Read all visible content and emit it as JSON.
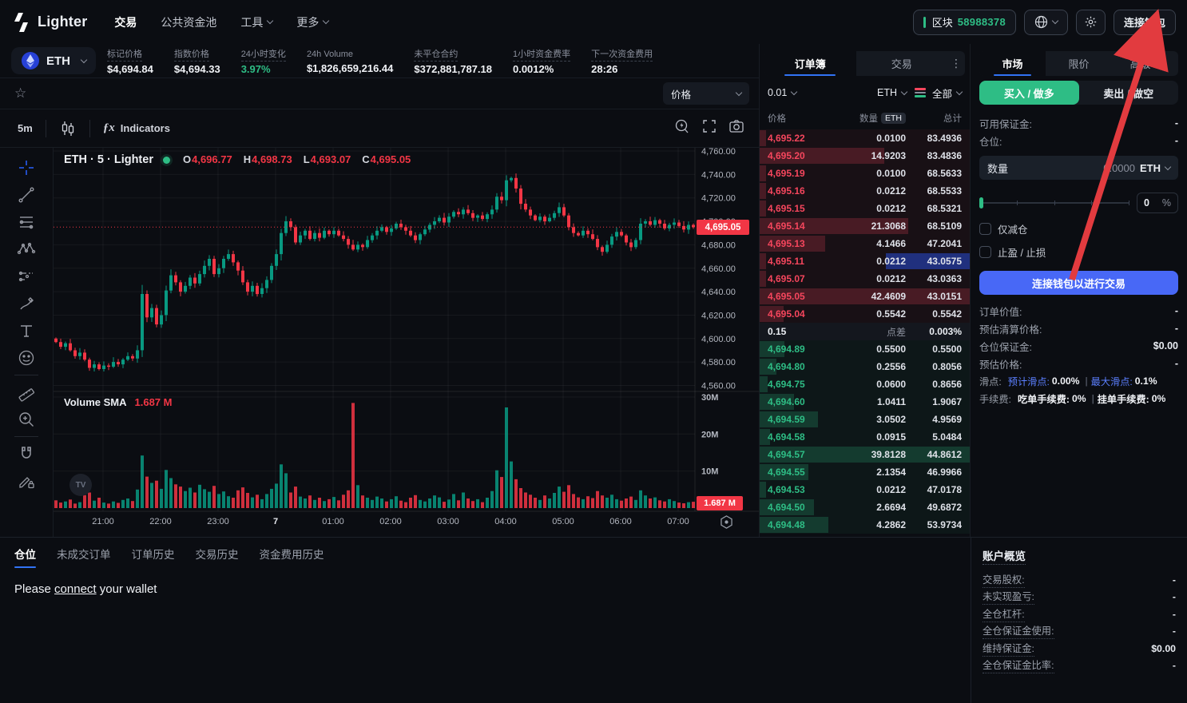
{
  "nav": {
    "brand": "Lighter",
    "items": [
      {
        "label": "交易",
        "active": true,
        "dropdown": false
      },
      {
        "label": "公共资金池",
        "active": false,
        "dropdown": false
      },
      {
        "label": "工具",
        "active": false,
        "dropdown": true
      },
      {
        "label": "更多",
        "active": false,
        "dropdown": true
      }
    ],
    "block_label": "区块",
    "block_number": "58988378",
    "connect_wallet_label": "连接钱包"
  },
  "market_bar": {
    "symbol": "ETH",
    "stats": [
      {
        "label": "标记价格",
        "value": "$4,694.84",
        "underline": true,
        "direction": ""
      },
      {
        "label": "指数价格",
        "value": "$4,694.33",
        "underline": true,
        "direction": ""
      },
      {
        "label": "24小时变化",
        "value": "3.97%",
        "underline": true,
        "direction": "up"
      },
      {
        "label": "24h Volume",
        "value": "$1,826,659,216.44",
        "underline": false,
        "direction": ""
      },
      {
        "label": "未平仓合约",
        "value": "$372,881,787.18",
        "underline": true,
        "direction": ""
      },
      {
        "label": "1小时资金费率",
        "value": "0.0012%",
        "underline": true,
        "direction": ""
      },
      {
        "label": "下一次资金费用",
        "value": "28:26",
        "underline": true,
        "direction": ""
      }
    ]
  },
  "chart_toolbar": {
    "timeframe": "5m",
    "indicators_label": "Indicators",
    "price_scale_label": "价格"
  },
  "chart": {
    "legend_title": "ETH · 5 · Lighter",
    "ohlc_labels": [
      "O",
      "H",
      "L",
      "C"
    ],
    "ohlc_values": [
      "4,696.77",
      "4,698.73",
      "4,693.07",
      "4,695.05"
    ],
    "volume_legend": "Volume SMA",
    "volume_value": "1.687 M",
    "price_tag": "4,695.05",
    "volume_tag": "1.687 M",
    "watermark": "TV"
  },
  "chart_data": {
    "type": "candlestick+volume",
    "symbol": "ETH",
    "interval": "5m",
    "ylim": [
      4560,
      4760
    ],
    "price_ticks": [
      4760,
      4740,
      4720,
      4700,
      4680,
      4660,
      4640,
      4620,
      4600,
      4580,
      4560
    ],
    "volume_ticks_m": [
      30,
      20,
      10
    ],
    "time_ticks": [
      "21:00",
      "22:00",
      "23:00",
      "7",
      "01:00",
      "02:00",
      "03:00",
      "04:00",
      "05:00",
      "06:00",
      "07:00"
    ],
    "current_price": 4695.05,
    "volume_sma_m": 1.687,
    "open_first": 4600,
    "closes": [
      4597,
      4593,
      4596,
      4590,
      4585,
      4588,
      4582,
      4575,
      4578,
      4574,
      4577,
      4576,
      4580,
      4578,
      4582,
      4585,
      4583,
      4590,
      4638,
      4618,
      4626,
      4612,
      4620,
      4641,
      4654,
      4648,
      4640,
      4645,
      4652,
      4647,
      4655,
      4662,
      4668,
      4655,
      4660,
      4668,
      4672,
      4665,
      4658,
      4648,
      4640,
      4645,
      4638,
      4643,
      4650,
      4662,
      4672,
      4690,
      4700,
      4695,
      4682,
      4688,
      4692,
      4685,
      4690,
      4686,
      4692,
      4689,
      4692,
      4688,
      4685,
      4680,
      4676,
      4680,
      4678,
      4684,
      4688,
      4692,
      4695,
      4691,
      4694,
      4698,
      4695,
      4692,
      4688,
      4684,
      4689,
      4693,
      4697,
      4700,
      4703,
      4699,
      4704,
      4708,
      4706,
      4710,
      4707,
      4703,
      4705,
      4702,
      4706,
      4710,
      4721,
      4718,
      4735,
      4737,
      4728,
      4715,
      4710,
      4705,
      4701,
      4704,
      4700,
      4703,
      4707,
      4712,
      4705,
      4695,
      4690,
      4688,
      4692,
      4689,
      4685,
      4678,
      4674,
      4680,
      4687,
      4691,
      4688,
      4682,
      4678,
      4684,
      4698,
      4700,
      4697,
      4701,
      4698,
      4694,
      4697,
      4699,
      4696,
      4693,
      4697,
      4695
    ],
    "volumes_m": [
      2.1,
      1.5,
      1.8,
      2.3,
      1.2,
      1.6,
      3.5,
      4.2,
      2.0,
      2.8,
      1.5,
      1.2,
      1.8,
      1.4,
      2.2,
      2.6,
      1.9,
      5.0,
      14.2,
      8.5,
      6.8,
      7.4,
      5.2,
      10.3,
      8.1,
      6.4,
      5.8,
      4.6,
      5.5,
      4.2,
      6.3,
      5.1,
      4.4,
      6.0,
      3.8,
      4.5,
      3.2,
      2.8,
      4.8,
      5.6,
      4.1,
      2.9,
      3.6,
      2.4,
      3.8,
      5.2,
      6.6,
      11.8,
      9.4,
      4.2,
      5.8,
      3.1,
      2.6,
      3.4,
      2.2,
      2.8,
      1.9,
      2.4,
      3.0,
      2.1,
      3.6,
      4.8,
      28.4,
      6.2,
      3.4,
      2.8,
      2.2,
      3.1,
      2.6,
      1.8,
      2.4,
      3.2,
      2.0,
      1.6,
      2.8,
      3.5,
      2.2,
      1.8,
      2.6,
      3.4,
      2.9,
      1.7,
      2.3,
      3.8,
      2.1,
      4.2,
      2.6,
      1.9,
      2.4,
      1.6,
      2.8,
      4.6,
      10.2,
      8.4,
      27.2,
      12.6,
      7.8,
      5.4,
      4.2,
      3.6,
      2.8,
      2.2,
      3.4,
      2.6,
      4.1,
      5.8,
      4.4,
      6.2,
      3.8,
      2.9,
      2.4,
      3.2,
      2.7,
      4.6,
      3.4,
      2.8,
      3.6,
      2.4,
      2.0,
      2.6,
      3.1,
      2.2,
      4.8,
      3.4,
      2.6,
      2.9,
      2.1,
      1.8,
      2.4,
      1.9,
      1.5,
      1.3,
      1.6,
      1.7
    ]
  },
  "drawing_tools": [
    "crosshair",
    "trend-line",
    "fib-retracement",
    "xabcd-pattern",
    "forecast",
    "brush",
    "text",
    "emoji",
    "ruler",
    "zoom-in",
    "magnet",
    "drawing-lock"
  ],
  "orderbook": {
    "tabs": [
      "订单簿",
      "交易"
    ],
    "active_tab": "订单簿",
    "precision": "0.01",
    "unit": "ETH",
    "view_all_label": "全部",
    "columns": {
      "price": "价格",
      "amount": "数量",
      "amount_unit": "ETH",
      "total": "总计"
    },
    "asks": [
      {
        "price": "4,695.22",
        "amount": "0.0100",
        "total": "83.4936"
      },
      {
        "price": "4,695.20",
        "amount": "14.9203",
        "total": "83.4836"
      },
      {
        "price": "4,695.19",
        "amount": "0.0100",
        "total": "68.5633"
      },
      {
        "price": "4,695.16",
        "amount": "0.0212",
        "total": "68.5533"
      },
      {
        "price": "4,695.15",
        "amount": "0.0212",
        "total": "68.5321"
      },
      {
        "price": "4,695.14",
        "amount": "21.3068",
        "total": "68.5109"
      },
      {
        "price": "4,695.13",
        "amount": "4.1466",
        "total": "47.2041"
      },
      {
        "price": "4,695.11",
        "amount": "0.0212",
        "total": "43.0575",
        "highlight": "blue"
      },
      {
        "price": "4,695.07",
        "amount": "0.0212",
        "total": "43.0363"
      },
      {
        "price": "4,695.05",
        "amount": "42.4609",
        "total": "43.0151"
      },
      {
        "price": "4,695.04",
        "amount": "0.5542",
        "total": "0.5542"
      }
    ],
    "spread": {
      "value": "0.15",
      "label": "点差",
      "percent": "0.003%"
    },
    "bids": [
      {
        "price": "4,694.89",
        "amount": "0.5500",
        "total": "0.5500"
      },
      {
        "price": "4,694.80",
        "amount": "0.2556",
        "total": "0.8056"
      },
      {
        "price": "4,694.75",
        "amount": "0.0600",
        "total": "0.8656"
      },
      {
        "price": "4,694.60",
        "amount": "1.0411",
        "total": "1.9067"
      },
      {
        "price": "4,694.59",
        "amount": "3.0502",
        "total": "4.9569"
      },
      {
        "price": "4,694.58",
        "amount": "0.0915",
        "total": "5.0484"
      },
      {
        "price": "4,694.57",
        "amount": "39.8128",
        "total": "44.8612"
      },
      {
        "price": "4,694.55",
        "amount": "2.1354",
        "total": "46.9966"
      },
      {
        "price": "4,694.53",
        "amount": "0.0212",
        "total": "47.0178"
      },
      {
        "price": "4,694.50",
        "amount": "2.6694",
        "total": "49.6872"
      },
      {
        "price": "4,694.48",
        "amount": "4.2862",
        "total": "53.9734"
      }
    ]
  },
  "trade_panel": {
    "tabs": [
      {
        "label": "市场",
        "active": true,
        "dropdown": false
      },
      {
        "label": "限价",
        "active": false,
        "dropdown": false
      },
      {
        "label": "高级",
        "active": false,
        "dropdown": true
      }
    ],
    "buy_label": "买入 / 做多",
    "sell_label": "卖出 / 做空",
    "available_margin_label": "可用保证金:",
    "available_margin_value": "-",
    "position_label": "仓位:",
    "position_value": "-",
    "amount_label": "数量",
    "amount_value": "0.0000",
    "amount_unit": "ETH",
    "slider_value": "0",
    "slider_unit": "%",
    "reduce_only_label": "仅减仓",
    "tp_sl_label": "止盈 / 止损",
    "cta_label": "连接钱包以进行交易",
    "info_rows": [
      {
        "label": "订单价值:",
        "value": "-"
      },
      {
        "label": "预估清算价格:",
        "value": "-"
      },
      {
        "label": "仓位保证金:",
        "value": "$0.00"
      },
      {
        "label": "预估价格:",
        "value": "-"
      }
    ],
    "slippage_label": "滑点:",
    "slippage_est_label": "预计滑点:",
    "slippage_est_value": "0.00%",
    "slippage_max_label": "最大滑点:",
    "slippage_max_value": "0.1%",
    "fee_label": "手续费:",
    "fee_taker_label": "吃单手续费:",
    "fee_taker_value": "0%",
    "fee_maker_label": "挂单手续费:",
    "fee_maker_value": "0%"
  },
  "bottom_panel": {
    "tabs": [
      "仓位",
      "未成交订单",
      "订单历史",
      "交易历史",
      "资金费用历史"
    ],
    "active_tab": "仓位",
    "message_prefix": "Please ",
    "message_link": "connect",
    "message_suffix": " your wallet"
  },
  "account_overview": {
    "title": "账户概览",
    "rows": [
      {
        "label": "交易股权:",
        "value": "-"
      },
      {
        "label": "未实现盈亏:",
        "value": "-"
      },
      {
        "label": "全仓杠杆:",
        "value": "-"
      },
      {
        "label": "全仓保证金使用:",
        "value": "-"
      },
      {
        "label": "维持保证金:",
        "value": "$0.00"
      },
      {
        "label": "全仓保证金比率:",
        "value": "-"
      }
    ]
  },
  "colors": {
    "green": "#2ebd85",
    "red": "#f6465d",
    "chart_up": "#089981",
    "chart_down": "#f23645",
    "blue": "#4868f6",
    "accent": "#3173f5",
    "arrow": "#e23b3f"
  }
}
